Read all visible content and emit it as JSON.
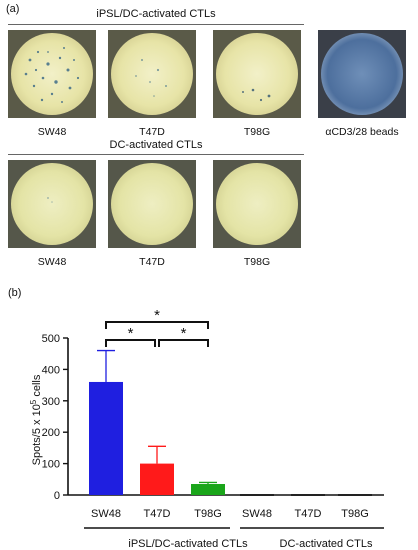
{
  "panel_a": {
    "label": "(a)",
    "group1": {
      "title": "iPSL/DC-activated CTLs",
      "wells": [
        "SW48",
        "T47D",
        "T98G"
      ],
      "control": "αCD3/28 beads"
    },
    "group2": {
      "title": "DC-activated CTLs",
      "wells": [
        "SW48",
        "T47D",
        "T98G"
      ]
    }
  },
  "panel_b": {
    "label": "(b)",
    "significance": [
      "*",
      "*",
      "*"
    ],
    "group_labels": [
      "iPSL/DC-activated CTLs",
      "DC-activated CTLs"
    ]
  },
  "chart_data": {
    "type": "bar",
    "categories": [
      "SW48",
      "T47D",
      "T98G",
      "SW48",
      "T47D",
      "T98G"
    ],
    "values": [
      360,
      100,
      35,
      0,
      0,
      0
    ],
    "errors": [
      100,
      55,
      5,
      0,
      0,
      0
    ],
    "colors": [
      "#1f1fe0",
      "#ff1a1a",
      "#1aa51a",
      "#000000",
      "#000000",
      "#000000"
    ],
    "ylabel_main": "Spots/5 x 10",
    "ylabel_sup": "5",
    "ylabel_end": " cells",
    "yticks": [
      0,
      100,
      200,
      300,
      400,
      500
    ],
    "ylim": [
      0,
      500
    ]
  }
}
